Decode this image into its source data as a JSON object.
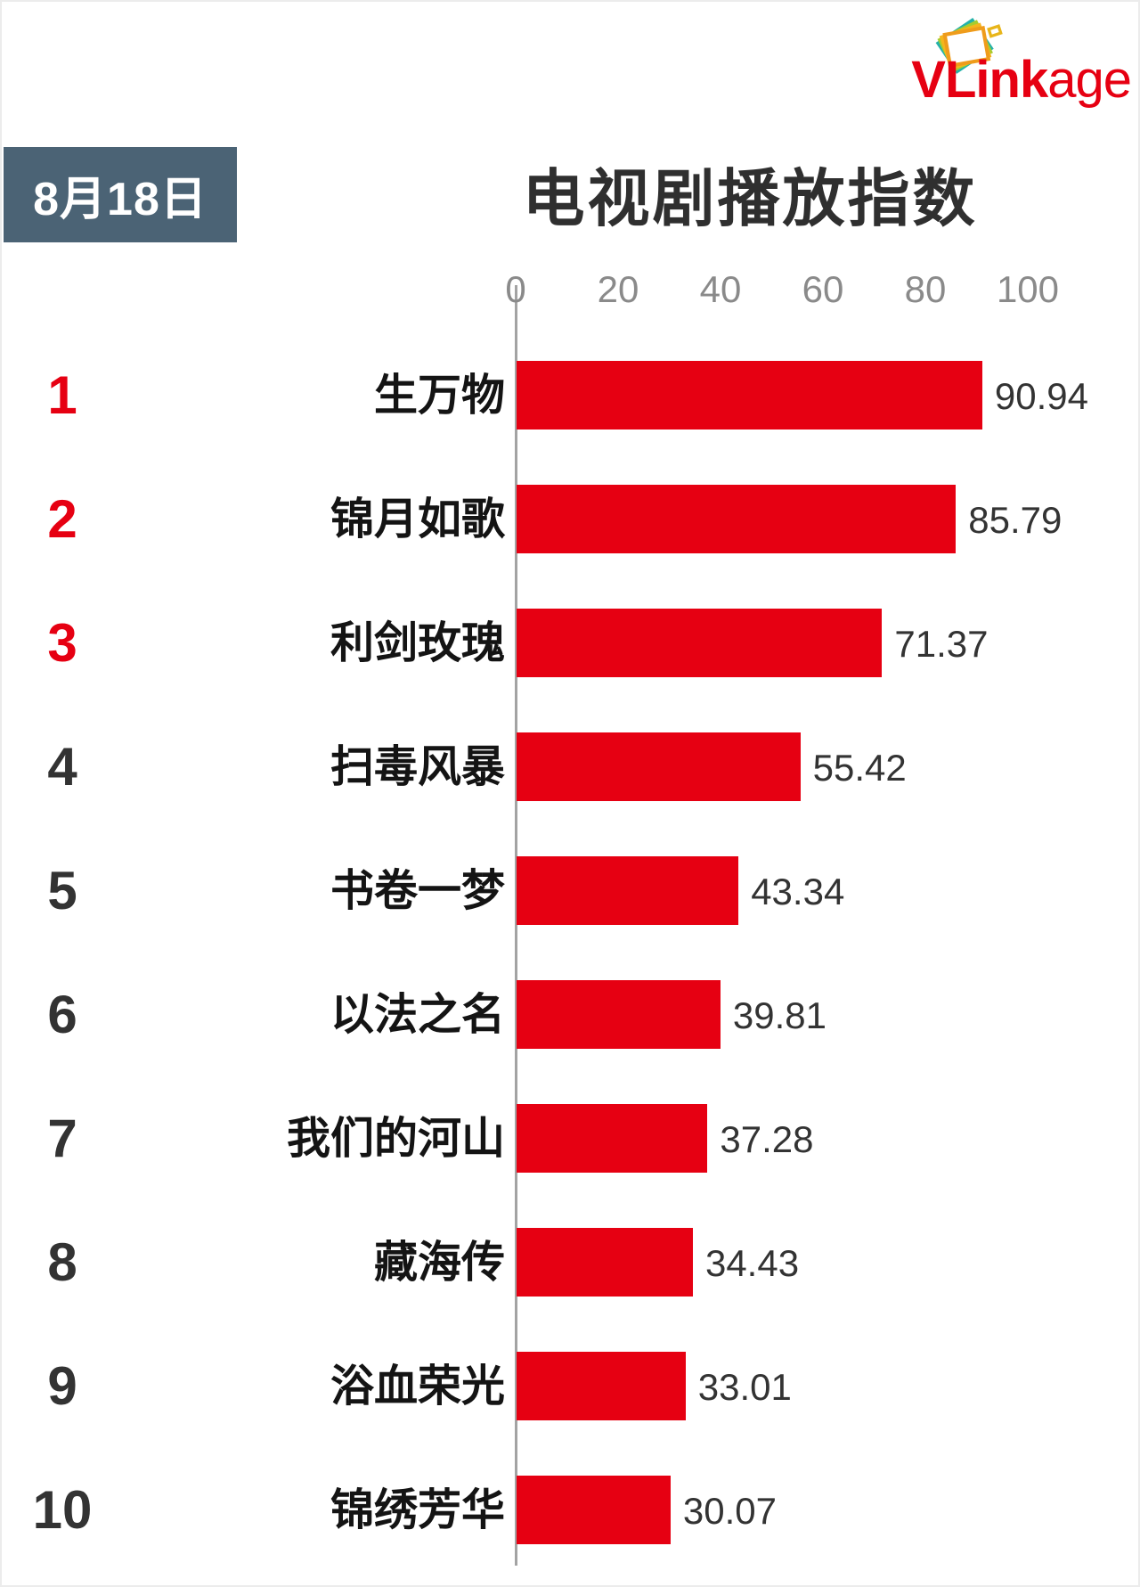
{
  "logo": {
    "brand_bold": "VLink",
    "brand_light": "age",
    "color": "#e60012",
    "icon": "stacked-photo-frames-icon"
  },
  "header": {
    "date_badge": "8月18日",
    "title": "电视剧播放指数"
  },
  "chart_data": {
    "type": "bar",
    "orientation": "horizontal",
    "title": "电视剧播放指数",
    "date": "8月18日",
    "categories": [
      "生万物",
      "锦月如歌",
      "利剑玫瑰",
      "扫毒风暴",
      "书卷一梦",
      "以法之名",
      "我们的河山",
      "藏海传",
      "浴血荣光",
      "锦绣芳华"
    ],
    "values": [
      90.94,
      85.79,
      71.37,
      55.42,
      43.34,
      39.81,
      37.28,
      34.43,
      33.01,
      30.07
    ],
    "value_labels": [
      "90.94",
      "85.79",
      "71.37",
      "55.42",
      "43.34",
      "39.81",
      "37.28",
      "34.43",
      "33.01",
      "30.07"
    ],
    "ranks": [
      "1",
      "2",
      "3",
      "4",
      "5",
      "6",
      "7",
      "8",
      "9",
      "10"
    ],
    "x_ticks": [
      0,
      20,
      40,
      60,
      80,
      100
    ],
    "xlim": [
      0,
      100
    ],
    "bar_color": "#e60012",
    "rank_color_top3": "#e60012",
    "rank_color_rest": "#333333",
    "tick_label_color": "#8a8a8a",
    "axis_color": "#a3a3a3",
    "grid": false,
    "legend": false
  }
}
